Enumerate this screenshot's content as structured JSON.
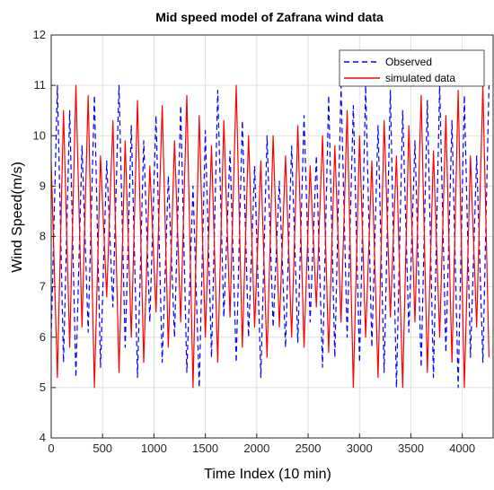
{
  "chart_data": {
    "type": "line",
    "title": "Mid speed model of Zafrana wind data",
    "xlabel": "Time Index (10 min)",
    "ylabel": "Wind Speed(m/s)",
    "xlim": [
      0,
      4300
    ],
    "ylim": [
      4,
      12
    ],
    "xticks": [
      0,
      500,
      1000,
      1500,
      2000,
      2500,
      3000,
      3500,
      4000
    ],
    "yticks": [
      4,
      5,
      6,
      7,
      8,
      9,
      10,
      11,
      12
    ],
    "grid": true,
    "legend_position": "top-right",
    "series": [
      {
        "name": "Observed",
        "color": "#0000ff",
        "line_style": "dashed",
        "x": [
          0,
          60,
          120,
          180,
          240,
          300,
          360,
          420,
          480,
          540,
          600,
          660,
          720,
          780,
          840,
          900,
          960,
          1020,
          1080,
          1140,
          1200,
          1260,
          1320,
          1380,
          1440,
          1500,
          1560,
          1620,
          1680,
          1740,
          1800,
          1860,
          1920,
          1980,
          2040,
          2100,
          2160,
          2220,
          2280,
          2340,
          2400,
          2460,
          2520,
          2580,
          2640,
          2700,
          2760,
          2820,
          2880,
          2940,
          3000,
          3060,
          3120,
          3180,
          3240,
          3300,
          3360,
          3420,
          3480,
          3540,
          3600,
          3660,
          3720,
          3780,
          3840,
          3900,
          3960,
          4020,
          4080,
          4140,
          4200,
          4260
        ],
        "values": [
          6.0,
          11.0,
          5.5,
          10.5,
          5.2,
          9.8,
          6.1,
          10.8,
          5.4,
          9.5,
          6.6,
          11.0,
          5.8,
          10.2,
          5.2,
          9.9,
          6.3,
          10.4,
          5.5,
          9.2,
          6.0,
          10.6,
          5.3,
          9.0,
          5.0,
          10.1,
          5.6,
          10.9,
          6.4,
          9.7,
          5.5,
          10.3,
          6.0,
          9.4,
          5.2,
          10.0,
          6.2,
          9.1,
          5.8,
          9.8,
          5.9,
          10.4,
          6.3,
          9.6,
          5.4,
          10.8,
          5.6,
          11.0,
          6.0,
          10.6,
          5.5,
          11.0,
          5.8,
          10.2,
          5.3,
          10.9,
          5.0,
          10.5,
          6.1,
          9.9,
          5.4,
          10.7,
          5.2,
          11.0,
          5.7,
          10.3,
          5.0,
          10.8,
          5.6,
          9.6,
          5.5,
          11.0
        ]
      },
      {
        "name": "simulated data",
        "color": "#ff0000",
        "line_style": "solid",
        "x": [
          0,
          60,
          120,
          180,
          240,
          300,
          360,
          420,
          480,
          540,
          600,
          660,
          720,
          780,
          840,
          900,
          960,
          1020,
          1080,
          1140,
          1200,
          1260,
          1320,
          1380,
          1440,
          1500,
          1560,
          1620,
          1680,
          1740,
          1800,
          1860,
          1920,
          1980,
          2040,
          2100,
          2160,
          2220,
          2280,
          2340,
          2400,
          2460,
          2520,
          2580,
          2640,
          2700,
          2760,
          2820,
          2880,
          2940,
          3000,
          3060,
          3120,
          3180,
          3240,
          3300,
          3360,
          3420,
          3480,
          3540,
          3600,
          3660,
          3720,
          3780,
          3840,
          3900,
          3960,
          4020,
          4080,
          4140,
          4200,
          4260
        ],
        "values": [
          9.5,
          5.2,
          10.5,
          5.8,
          11.0,
          6.2,
          10.8,
          5.0,
          9.6,
          6.8,
          10.3,
          5.3,
          9.9,
          6.0,
          10.7,
          5.5,
          9.4,
          6.5,
          10.6,
          5.8,
          9.9,
          6.3,
          10.8,
          5.0,
          10.4,
          6.0,
          9.8,
          5.5,
          10.3,
          6.4,
          11.0,
          5.8,
          10.0,
          6.2,
          9.5,
          5.6,
          10.0,
          6.2,
          9.6,
          6.0,
          10.2,
          5.8,
          9.4,
          6.6,
          10.0,
          5.7,
          9.8,
          6.3,
          10.5,
          5.0,
          10.0,
          6.0,
          9.5,
          5.2,
          10.3,
          6.4,
          9.6,
          5.0,
          10.2,
          6.3,
          10.8,
          5.3,
          9.7,
          6.0,
          10.4,
          5.5,
          10.9,
          5.0,
          9.6,
          6.2,
          11.0,
          5.6
        ]
      }
    ]
  }
}
